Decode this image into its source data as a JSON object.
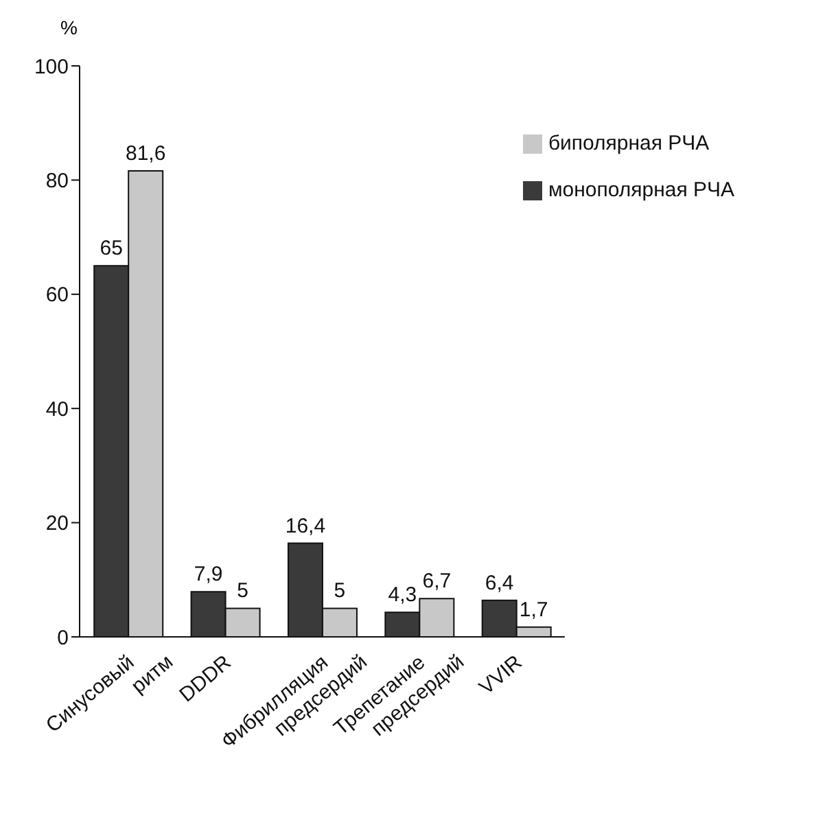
{
  "chart_data": {
    "type": "bar",
    "ylabel": "%",
    "categories": [
      "Синусовый ритм",
      "DDDR",
      "Фибрилляция предсердий",
      "Трепетание предсердий",
      "VVIR"
    ],
    "series": [
      {
        "name": "монополярная РЧА",
        "color": "#3a3a3a",
        "values": [
          65,
          7.9,
          16.4,
          4.3,
          6.4
        ],
        "value_labels": [
          "65",
          "7,9",
          "16,4",
          "4,3",
          "6,4"
        ]
      },
      {
        "name": "биполярная РЧА",
        "color": "#c8c8c8",
        "values": [
          81.6,
          5,
          5,
          6.7,
          1.7
        ],
        "value_labels": [
          "81,6",
          "5",
          "5",
          "6,7",
          "1,7"
        ]
      }
    ],
    "ylim": [
      0,
      100
    ],
    "yticks": [
      0,
      20,
      40,
      60,
      80,
      100
    ],
    "legend": "top right"
  }
}
